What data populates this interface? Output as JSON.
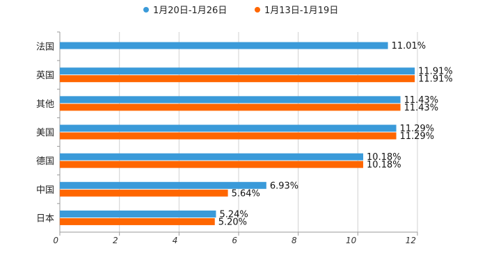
{
  "chart_data": {
    "type": "bar",
    "orientation": "horizontal",
    "categories": [
      "法国",
      "英国",
      "其他",
      "美国",
      "德国",
      "中国",
      "日本"
    ],
    "series": [
      {
        "name": "1月20日-1月26日",
        "color": "#3a9ad9",
        "values": [
          11.01,
          11.91,
          11.43,
          11.29,
          10.18,
          6.93,
          5.24
        ],
        "labels": [
          "11.01%",
          "11.91%",
          "11.43%",
          "11.29%",
          "10.18%",
          "6.93%",
          "5.24%"
        ]
      },
      {
        "name": "1月13日-1月19日",
        "color": "#ff6600",
        "values": [
          null,
          11.91,
          11.43,
          11.29,
          10.18,
          5.64,
          5.2
        ],
        "labels": [
          null,
          "11.91%",
          "11.43%",
          "11.29%",
          "10.18%",
          "5.64%",
          "5.20%"
        ]
      }
    ],
    "xlim": [
      0,
      12
    ],
    "xticks": [
      "0",
      "2",
      "4",
      "6",
      "8",
      "10",
      "12"
    ],
    "grid": true,
    "legend": "top-center"
  }
}
